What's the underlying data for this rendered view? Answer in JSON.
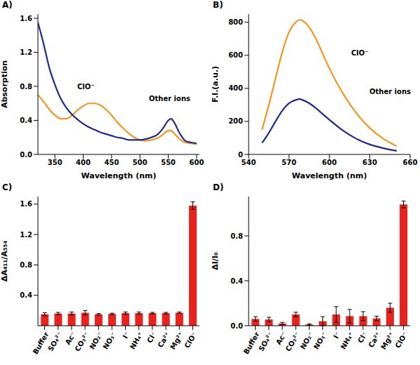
{
  "chart_data": [
    {
      "panel": "A)",
      "type": "line",
      "x_label": "Wavelength (nm)",
      "y_label": "Absorption",
      "x": [
        320,
        330,
        340,
        350,
        360,
        370,
        380,
        390,
        400,
        410,
        420,
        430,
        440,
        450,
        460,
        470,
        480,
        490,
        500,
        510,
        520,
        530,
        540,
        550,
        555,
        560,
        570,
        580,
        590,
        600
      ],
      "xlim": [
        320,
        605
      ],
      "xticks": [
        350,
        400,
        450,
        500,
        550,
        600
      ],
      "ylim": [
        0,
        1.65
      ],
      "yticks": [
        {
          "value": 0,
          "label": "0.0"
        },
        0.4,
        0.8,
        1.2,
        1.6
      ],
      "grid": false,
      "series": [
        {
          "name": "ClO⁻",
          "color": "#f7941d",
          "values": [
            0.7,
            0.62,
            0.53,
            0.46,
            0.42,
            0.42,
            0.46,
            0.52,
            0.57,
            0.6,
            0.6,
            0.58,
            0.53,
            0.46,
            0.38,
            0.31,
            0.25,
            0.2,
            0.17,
            0.16,
            0.17,
            0.19,
            0.23,
            0.28,
            0.28,
            0.25,
            0.18,
            0.14,
            0.13,
            0.12
          ]
        },
        {
          "name": "Other ions",
          "color": "#1f2a8c",
          "values": [
            1.55,
            1.3,
            1.02,
            0.82,
            0.66,
            0.55,
            0.47,
            0.41,
            0.36,
            0.32,
            0.29,
            0.26,
            0.24,
            0.22,
            0.2,
            0.19,
            0.17,
            0.17,
            0.17,
            0.18,
            0.2,
            0.23,
            0.3,
            0.4,
            0.42,
            0.38,
            0.25,
            0.16,
            0.14,
            0.13
          ]
        }
      ]
    },
    {
      "panel": "B)",
      "type": "line",
      "x_label": "Wavelength (nm)",
      "y_label": "F.I.(a.u.)",
      "x": [
        550,
        555,
        560,
        565,
        570,
        575,
        578,
        580,
        585,
        590,
        595,
        600,
        610,
        620,
        630,
        640,
        650
      ],
      "xlim": [
        540,
        660
      ],
      "xticks": [
        540,
        570,
        600,
        630,
        660
      ],
      "ylim": [
        0,
        850
      ],
      "yticks": [
        0,
        200,
        400,
        600,
        800
      ],
      "grid": false,
      "series": [
        {
          "name": "ClO⁻",
          "color": "#f7941d",
          "values": [
            150,
            300,
            460,
            620,
            740,
            800,
            815,
            810,
            770,
            700,
            610,
            520,
            370,
            250,
            160,
            95,
            50
          ]
        },
        {
          "name": "Other ions",
          "color": "#1f2a8c",
          "values": [
            70,
            130,
            200,
            265,
            310,
            330,
            335,
            330,
            310,
            280,
            245,
            210,
            145,
            95,
            60,
            38,
            22
          ]
        }
      ]
    },
    {
      "panel": "C)",
      "type": "bar",
      "y_label": "ΔA₄₁₁/A₅₅₄",
      "categories": [
        "Buffer",
        "SO₄²⁻",
        "Ac⁻",
        "CO₃²⁻",
        "NO₂⁻",
        "NO₃⁻",
        "I⁻",
        "NH₄⁺",
        "Cl⁻",
        "Ca²⁺",
        "Mg²⁺",
        "ClO⁻"
      ],
      "values": [
        0.15,
        0.16,
        0.16,
        0.17,
        0.15,
        0.155,
        0.165,
        0.165,
        0.165,
        0.165,
        0.17,
        1.58
      ],
      "errors": [
        0.02,
        0.015,
        0.02,
        0.03,
        0.01,
        0.01,
        0.015,
        0.015,
        0.01,
        0.01,
        0.01,
        0.05
      ],
      "color": "#e8221c",
      "ylim": [
        0,
        1.7
      ],
      "yticks": [
        0.4,
        0.8,
        1.2,
        1.6
      ],
      "grid": false
    },
    {
      "panel": "D)",
      "type": "bar",
      "y_label": "ΔI/I₀",
      "categories": [
        "Buffer",
        "SO₄²⁻",
        "Ac⁻",
        "CO₃²⁻",
        "NO₂⁻",
        "NO₃⁻",
        "I⁻",
        "NH₄⁺",
        "Cl⁻",
        "Ca²⁺",
        "Mg²⁺",
        "ClO⁻"
      ],
      "values": [
        0.06,
        0.055,
        0.02,
        0.1,
        0.01,
        0.04,
        0.1,
        0.085,
        0.085,
        0.065,
        0.16,
        1.08
      ],
      "errors": [
        0.02,
        0.02,
        0.01,
        0.02,
        0.005,
        0.04,
        0.07,
        0.06,
        0.04,
        0.02,
        0.04,
        0.03
      ],
      "color": "#e8221c",
      "ylim": [
        0,
        1.15
      ],
      "yticks": [
        {
          "value": 0,
          "label": "0.0"
        },
        0.4,
        0.8
      ],
      "grid": false
    }
  ]
}
